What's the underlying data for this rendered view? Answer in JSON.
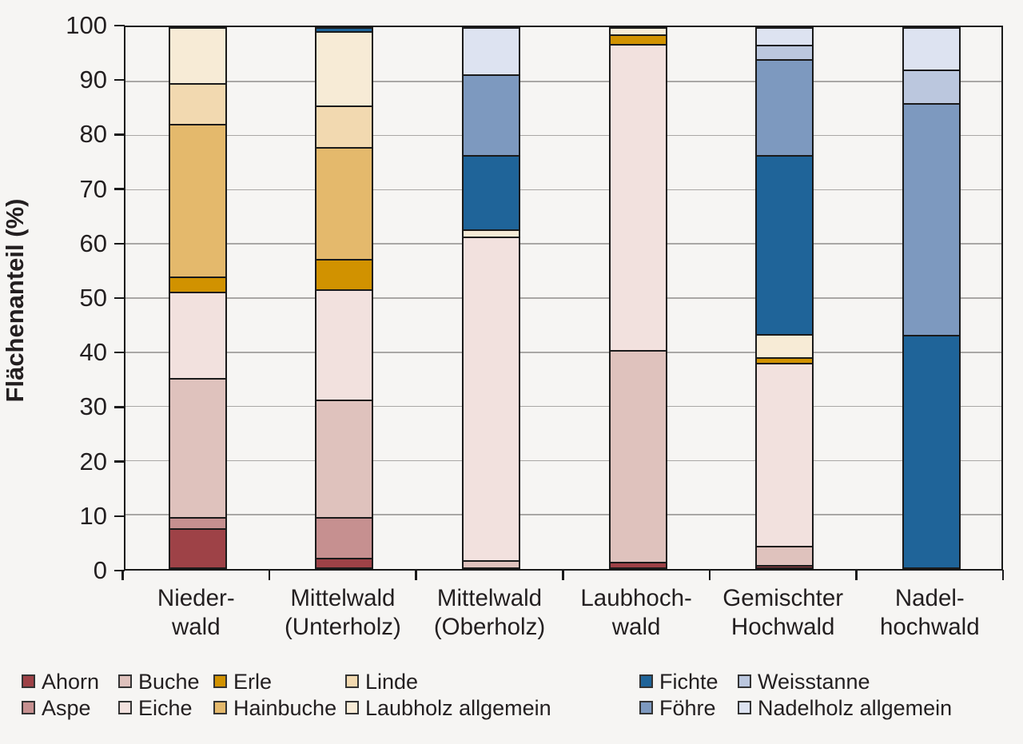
{
  "y_axis": {
    "title": "Flächenanteil (%)",
    "ticks": [
      "0",
      "10",
      "20",
      "30",
      "40",
      "50",
      "60",
      "70",
      "80",
      "90",
      "100"
    ]
  },
  "chart_data": {
    "type": "bar",
    "stacked": true,
    "orientation": "vertical",
    "ylabel": "Flächenanteil (%)",
    "ylim": [
      0,
      100
    ],
    "grid": true,
    "legend_position": "bottom",
    "categories": [
      "Niederwald",
      "Mittelwald (Unterholz)",
      "Mittelwald (Oberholz)",
      "Laubhochwald",
      "Gemischter Hochwald",
      "Nadelhochwald"
    ],
    "category_label_lines": [
      [
        "Nieder-",
        "wald"
      ],
      [
        "Mittelwald",
        "(Unterholz)"
      ],
      [
        "Mittelwald",
        "(Oberholz)"
      ],
      [
        "Laubhoch-",
        "wald"
      ],
      [
        "Gemischter",
        "Hochwald"
      ],
      [
        "Nadel-",
        "hochwald"
      ]
    ],
    "series": [
      {
        "name": "Ahorn",
        "color": "#9e4247",
        "values": [
          7.2,
          1.8,
          0,
          1.0,
          0.4,
          0
        ]
      },
      {
        "name": "Aspe",
        "color": "#c69090",
        "values": [
          2.1,
          7.6,
          0,
          0,
          0,
          0
        ]
      },
      {
        "name": "Buche",
        "color": "#dfc2bd",
        "values": [
          25.9,
          21.8,
          1.4,
          39.3,
          3.6,
          0
        ]
      },
      {
        "name": "Eiche",
        "color": "#f2e1de",
        "values": [
          16.0,
          20.4,
          60.1,
          56.9,
          34.0,
          0
        ]
      },
      {
        "name": "Erle",
        "color": "#d19200",
        "values": [
          2.8,
          5.6,
          0,
          1.8,
          1.0,
          0
        ]
      },
      {
        "name": "Hainbuche",
        "color": "#e4b96c",
        "values": [
          28.3,
          20.8,
          0,
          0,
          0,
          0
        ]
      },
      {
        "name": "Linde",
        "color": "#f2d9b0",
        "values": [
          7.6,
          7.7,
          0,
          0,
          0,
          0
        ]
      },
      {
        "name": "Laubholz allgemein",
        "color": "#f7ebd6",
        "values": [
          10.1,
          13.8,
          1.3,
          1.0,
          4.3,
          0
        ]
      },
      {
        "name": "Fichte",
        "color": "#1f6499",
        "values": [
          0,
          0.5,
          13.7,
          0,
          33.2,
          43.2
        ]
      },
      {
        "name": "Föhre",
        "color": "#7d99bf",
        "values": [
          0,
          0,
          15.1,
          0,
          17.8,
          43.0
        ]
      },
      {
        "name": "Weisstanne",
        "color": "#bbc7de",
        "values": [
          0,
          0,
          0,
          0,
          2.7,
          6.3
        ]
      },
      {
        "name": "Nadelholz allgemein",
        "color": "#dde3f1",
        "values": [
          0,
          0,
          8.4,
          0,
          3.0,
          7.5
        ]
      }
    ]
  },
  "legend": {
    "columns": [
      [
        "Ahorn",
        "Aspe"
      ],
      [
        "Buche",
        "Eiche"
      ],
      [
        "Erle",
        "Hainbuche"
      ],
      [
        "Linde",
        "Laubholz allgemein"
      ],
      [
        "Fichte",
        "Föhre"
      ],
      [
        "Weisstanne",
        "Nadelholz allgemein"
      ]
    ]
  },
  "colors": {
    "background": "#f6f5f3",
    "frame": "#1a1a1a",
    "gridline": "#a9a7a5",
    "text": "#231f20"
  }
}
